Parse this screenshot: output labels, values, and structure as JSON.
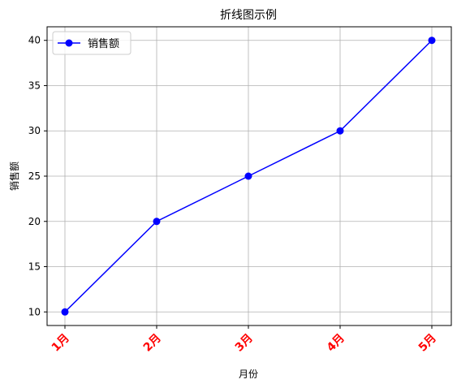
{
  "chart_data": {
    "type": "line",
    "title": "折线图示例",
    "xlabel": "月份",
    "ylabel": "销售额",
    "categories": [
      "1月",
      "2月",
      "3月",
      "4月",
      "5月"
    ],
    "series": [
      {
        "name": "销售额",
        "values": [
          10,
          20,
          25,
          30,
          40
        ],
        "color": "#0000ff",
        "marker": "circle"
      }
    ],
    "yticks": [
      10,
      15,
      20,
      25,
      30,
      35,
      40
    ],
    "ylim": [
      8.5,
      41.5
    ],
    "grid": true,
    "legend_position": "top-left",
    "xtick_color": "#ff0000",
    "xtick_rotation": 45
  }
}
